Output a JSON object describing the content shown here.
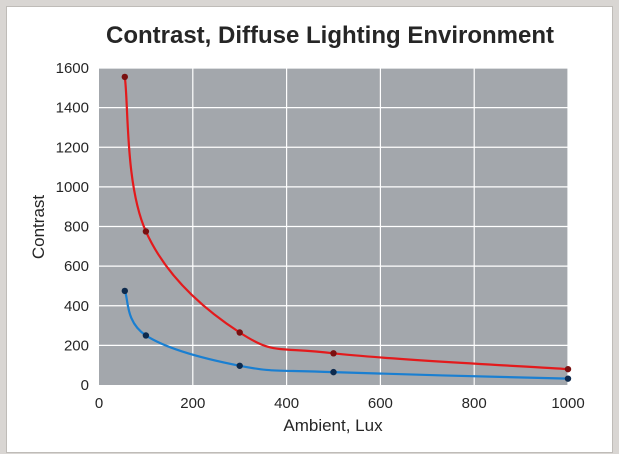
{
  "chart_data": {
    "type": "line",
    "title": "Contrast, Diffuse Lighting Environment",
    "xlabel": "Ambient, Lux",
    "ylabel": "Contrast",
    "xlim": [
      0,
      1000
    ],
    "ylim": [
      0,
      1600
    ],
    "x_ticks": [
      0,
      200,
      400,
      600,
      800,
      1000
    ],
    "y_ticks": [
      0,
      200,
      400,
      600,
      800,
      1000,
      1200,
      1400,
      1600
    ],
    "grid": true,
    "legend": "none",
    "plot_background": "#a3a7ac",
    "series": [
      {
        "color": "#e31a1c",
        "marker_color": "#7a1010",
        "x": [
          55,
          100,
          300,
          500,
          1000
        ],
        "y": [
          1555,
          775,
          265,
          160,
          80
        ]
      },
      {
        "color": "#1a7fd1",
        "marker_color": "#0d2a4d",
        "x": [
          55,
          100,
          300,
          500,
          1000
        ],
        "y": [
          475,
          250,
          97,
          65,
          32
        ]
      }
    ]
  }
}
